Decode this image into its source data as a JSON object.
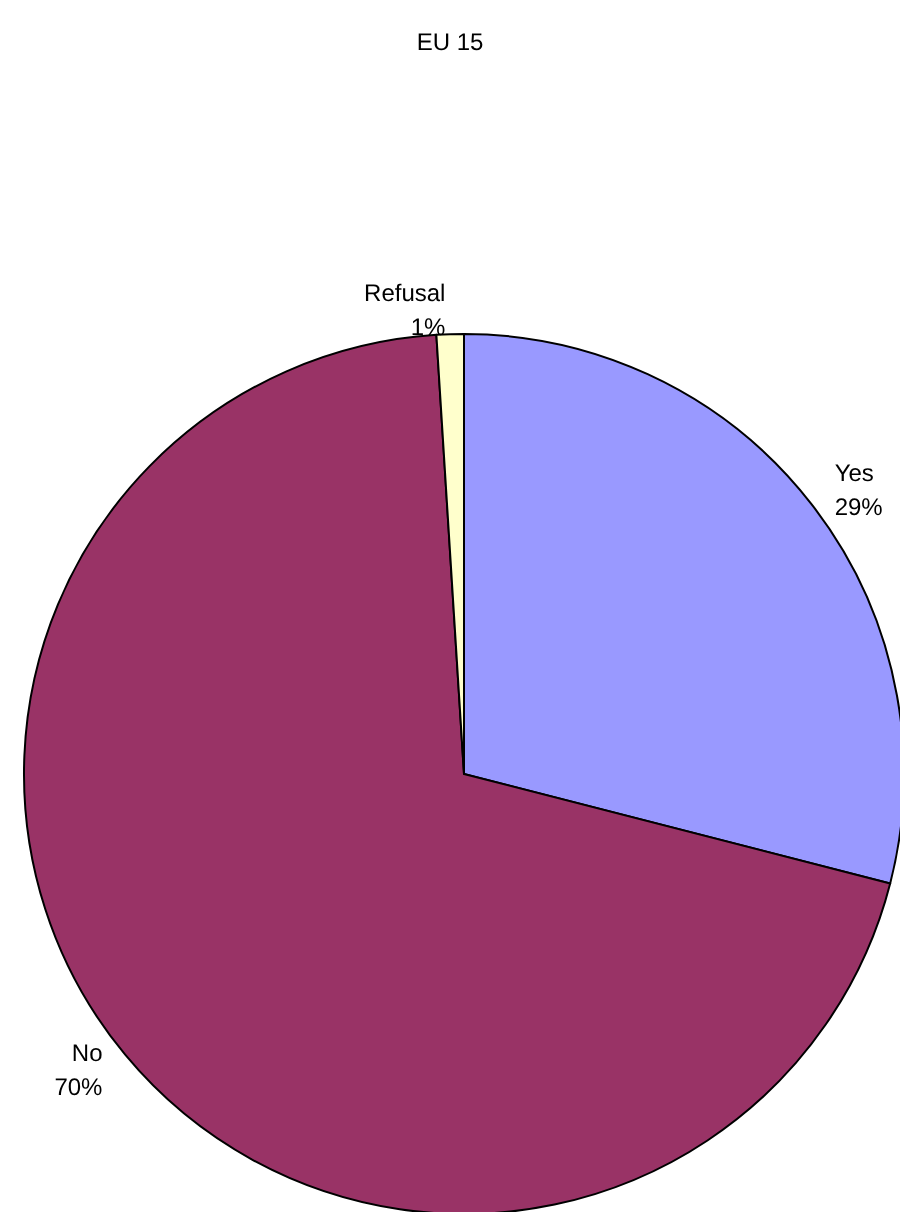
{
  "chart_data": {
    "type": "pie",
    "title": "EU 15",
    "categories": [
      "Yes",
      "No",
      "Refusal"
    ],
    "values": [
      29,
      70,
      1
    ],
    "colors": [
      "#9999ff",
      "#993366",
      "#ffffcc"
    ],
    "value_labels": [
      "29%",
      "70%",
      "1%"
    ],
    "legend": false
  }
}
